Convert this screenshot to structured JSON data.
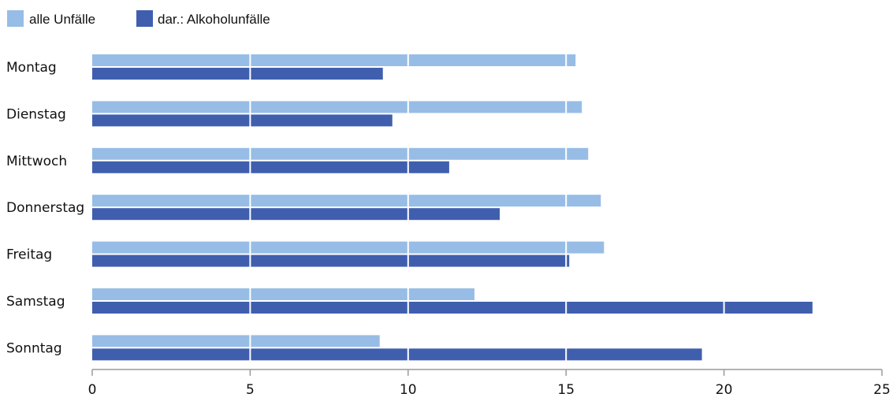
{
  "chart_data": {
    "type": "bar",
    "orientation": "horizontal",
    "categories": [
      "Montag",
      "Dienstag",
      "Mittwoch",
      "Donnerstag",
      "Freitag",
      "Samstag",
      "Sonntag"
    ],
    "series": [
      {
        "name": "alle Unfälle",
        "color": "#97bde6",
        "values": [
          15.3,
          15.5,
          15.7,
          16.1,
          16.2,
          12.1,
          9.1
        ]
      },
      {
        "name": "dar.: Alkoholunfälle",
        "color": "#3f5fae",
        "values": [
          9.2,
          9.5,
          11.3,
          12.9,
          15.1,
          22.8,
          19.3
        ]
      }
    ],
    "xlim": [
      0,
      25
    ],
    "xticks": [
      0,
      5,
      10,
      15,
      20,
      25
    ],
    "xlabel": "",
    "ylabel": "",
    "title": "",
    "grid": true,
    "legend_position": "top-left"
  }
}
